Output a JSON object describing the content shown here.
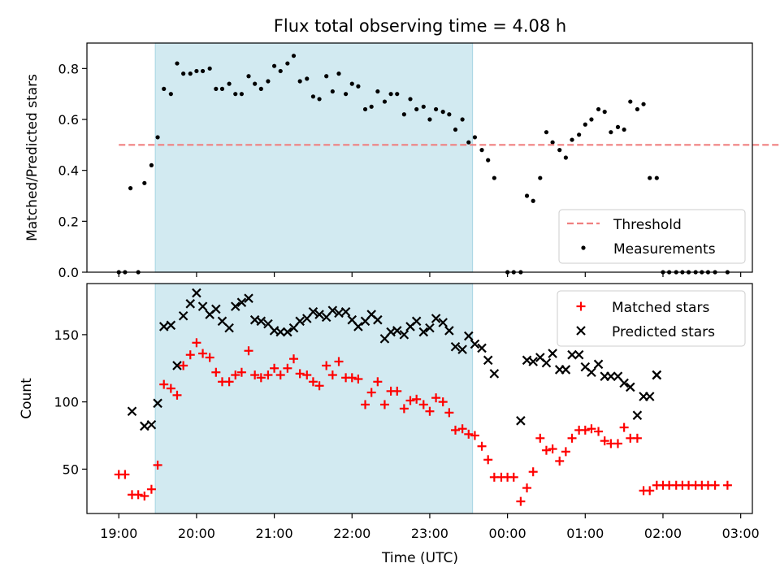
{
  "title": "Flux total observing time = 4.08 h",
  "xlabel": "Time (UTC)",
  "xticks": [
    "19:00",
    "20:00",
    "21:00",
    "22:00",
    "23:00",
    "00:00",
    "01:00",
    "02:00",
    "03:00"
  ],
  "colors": {
    "shade": "#add8e6",
    "threshold": "#f08080",
    "matched": "#ff0000",
    "predicted": "#000000",
    "measurement": "#000000"
  },
  "chart_data": [
    {
      "id": "ratio",
      "type": "scatter",
      "ylabel": "Matched/Predicted stars",
      "ylim": [
        0,
        0.9
      ],
      "yticks": [
        0.0,
        0.2,
        0.4,
        0.6,
        0.8
      ],
      "ytick_labels": [
        "0.0",
        "0.2",
        "0.4",
        "0.6",
        "0.8"
      ],
      "shaded_interval_hours": [
        19.47,
        23.55
      ],
      "threshold": {
        "name": "Threshold",
        "y": 0.5,
        "x_range": [
          19.0,
          27.75
        ]
      },
      "legend": {
        "position": "lower-right",
        "entries": [
          "Threshold",
          "Measurements"
        ]
      },
      "series": [
        {
          "name": "Measurements",
          "x": [
            19.0,
            19.08,
            19.25,
            19.15,
            19.33,
            19.42,
            19.5,
            19.58,
            19.67,
            19.75,
            19.83,
            19.92,
            20.0,
            20.08,
            20.17,
            20.25,
            20.33,
            20.42,
            20.5,
            20.58,
            20.67,
            20.75,
            20.83,
            20.92,
            21.0,
            21.08,
            21.17,
            21.25,
            21.33,
            21.42,
            21.5,
            21.58,
            21.67,
            21.75,
            21.83,
            21.92,
            22.0,
            22.08,
            22.17,
            22.25,
            22.33,
            22.42,
            22.5,
            22.58,
            22.67,
            22.75,
            22.83,
            22.92,
            23.0,
            23.08,
            23.17,
            23.25,
            23.33,
            23.42,
            23.5,
            23.58,
            23.67,
            23.75,
            23.83,
            24.0,
            24.08,
            24.17,
            24.25,
            24.33,
            24.42,
            24.5,
            24.58,
            24.67,
            24.75,
            24.83,
            24.92,
            25.0,
            25.08,
            25.17,
            25.25,
            25.33,
            25.42,
            25.5,
            25.58,
            25.67,
            25.75,
            25.83,
            25.92,
            26.0,
            26.08,
            26.17,
            26.25,
            26.33,
            26.42,
            26.5,
            26.58,
            26.67,
            26.83
          ],
          "y": [
            0.0,
            0.0,
            0.0,
            0.33,
            0.35,
            0.42,
            0.53,
            0.72,
            0.7,
            0.82,
            0.78,
            0.78,
            0.79,
            0.79,
            0.8,
            0.72,
            0.72,
            0.74,
            0.7,
            0.7,
            0.77,
            0.74,
            0.72,
            0.75,
            0.81,
            0.79,
            0.82,
            0.85,
            0.75,
            0.76,
            0.69,
            0.68,
            0.77,
            0.71,
            0.78,
            0.7,
            0.74,
            0.73,
            0.64,
            0.65,
            0.71,
            0.67,
            0.7,
            0.7,
            0.62,
            0.68,
            0.64,
            0.65,
            0.6,
            0.64,
            0.63,
            0.62,
            0.56,
            0.6,
            0.51,
            0.53,
            0.48,
            0.44,
            0.37,
            0.0,
            0.0,
            0.0,
            0.3,
            0.28,
            0.37,
            0.55,
            0.51,
            0.48,
            0.45,
            0.52,
            0.54,
            0.58,
            0.6,
            0.64,
            0.63,
            0.55,
            0.57,
            0.56,
            0.67,
            0.64,
            0.66,
            0.37,
            0.37,
            0.0,
            0.0,
            0.0,
            0.0,
            0.0,
            0.0,
            0.0,
            0.0,
            0.0,
            0.0
          ]
        }
      ]
    },
    {
      "id": "counts",
      "type": "scatter",
      "ylabel": "Count",
      "ylim": [
        17,
        188
      ],
      "yticks": [
        50,
        100,
        150
      ],
      "ytick_labels": [
        "50",
        "100",
        "150"
      ],
      "shaded_interval_hours": [
        19.47,
        23.55
      ],
      "legend": {
        "position": "upper-right",
        "entries": [
          "Matched stars",
          "Predicted stars"
        ]
      },
      "series": [
        {
          "name": "Matched stars",
          "marker": "plus",
          "x": [
            19.0,
            19.08,
            19.17,
            19.25,
            19.33,
            19.42,
            19.5,
            19.58,
            19.67,
            19.75,
            19.83,
            19.92,
            20.0,
            20.08,
            20.17,
            20.25,
            20.33,
            20.42,
            20.5,
            20.58,
            20.67,
            20.75,
            20.83,
            20.92,
            21.0,
            21.08,
            21.17,
            21.25,
            21.33,
            21.42,
            21.5,
            21.58,
            21.67,
            21.75,
            21.83,
            21.92,
            22.0,
            22.08,
            22.17,
            22.25,
            22.33,
            22.42,
            22.5,
            22.58,
            22.67,
            22.75,
            22.83,
            22.92,
            23.0,
            23.08,
            23.17,
            23.25,
            23.33,
            23.42,
            23.5,
            23.58,
            23.67,
            23.75,
            23.83,
            23.92,
            24.0,
            24.08,
            24.17,
            24.25,
            24.33,
            24.42,
            24.5,
            24.58,
            24.67,
            24.75,
            24.83,
            24.92,
            25.0,
            25.08,
            25.17,
            25.25,
            25.33,
            25.42,
            25.5,
            25.58,
            25.67,
            25.75,
            25.83,
            25.92,
            26.0,
            26.08,
            26.17,
            26.25,
            26.33,
            26.42,
            26.5,
            26.58,
            26.67,
            26.83
          ],
          "y": [
            46,
            46,
            31,
            31,
            30,
            35,
            53,
            113,
            110,
            105,
            127,
            135,
            144,
            136,
            133,
            122,
            115,
            115,
            120,
            122,
            138,
            120,
            118,
            120,
            125,
            120,
            125,
            132,
            121,
            120,
            115,
            112,
            127,
            120,
            130,
            118,
            118,
            117,
            98,
            107,
            115,
            98,
            108,
            108,
            95,
            101,
            102,
            98,
            93,
            103,
            100,
            92,
            79,
            80,
            76,
            75,
            67,
            57,
            44,
            44,
            44,
            44,
            26,
            36,
            48,
            73,
            64,
            65,
            56,
            63,
            73,
            79,
            79,
            80,
            78,
            71,
            69,
            69,
            81,
            73,
            73,
            34,
            34,
            38,
            38,
            38,
            38,
            38,
            38,
            38,
            38,
            38,
            38,
            38
          ]
        },
        {
          "name": "Predicted stars",
          "marker": "x",
          "x": [
            19.17,
            19.33,
            19.42,
            19.5,
            19.58,
            19.67,
            19.75,
            19.83,
            19.92,
            20.0,
            20.08,
            20.17,
            20.25,
            20.33,
            20.42,
            20.5,
            20.58,
            20.67,
            20.75,
            20.83,
            20.92,
            21.0,
            21.08,
            21.17,
            21.25,
            21.33,
            21.42,
            21.5,
            21.58,
            21.67,
            21.75,
            21.83,
            21.92,
            22.0,
            22.08,
            22.17,
            22.25,
            22.33,
            22.42,
            22.5,
            22.58,
            22.67,
            22.75,
            22.83,
            22.92,
            23.0,
            23.08,
            23.17,
            23.25,
            23.33,
            23.42,
            23.5,
            23.58,
            23.67,
            23.75,
            23.83,
            24.17,
            24.25,
            24.33,
            24.42,
            24.5,
            24.58,
            24.67,
            24.75,
            24.83,
            24.92,
            25.0,
            25.08,
            25.17,
            25.25,
            25.33,
            25.42,
            25.5,
            25.58,
            25.67,
            25.75,
            25.83,
            25.92,
            25.92
          ],
          "y": [
            93,
            82,
            83,
            99,
            156,
            157,
            127,
            164,
            173,
            181,
            171,
            165,
            169,
            160,
            155,
            171,
            174,
            177,
            161,
            160,
            158,
            153,
            152,
            152,
            155,
            160,
            162,
            167,
            165,
            163,
            168,
            166,
            167,
            161,
            156,
            160,
            165,
            161,
            147,
            152,
            153,
            150,
            156,
            160,
            152,
            155,
            162,
            159,
            153,
            141,
            139,
            149,
            143,
            140,
            131,
            121,
            86,
            131,
            130,
            133,
            129,
            136,
            124,
            124,
            135,
            135,
            126,
            122,
            128,
            119,
            119,
            119,
            114,
            111,
            90,
            104,
            104,
            120,
            120
          ]
        }
      ]
    }
  ]
}
